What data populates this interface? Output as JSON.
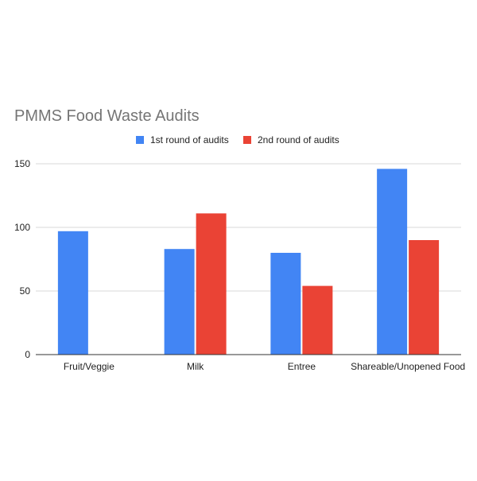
{
  "chart_data": {
    "type": "bar",
    "title": "PMMS Food Waste Audits",
    "xlabel": "",
    "ylabel": "",
    "categories": [
      "Fruit/Veggie",
      "Milk",
      "Entree",
      "Shareable/Unopened Food"
    ],
    "series": [
      {
        "name": "1st round of audits",
        "color": "#4285f4",
        "values": [
          97,
          83,
          80,
          146
        ]
      },
      {
        "name": "2nd round of audits",
        "color": "#ea4335",
        "values": [
          0,
          111,
          54,
          90
        ]
      }
    ],
    "ylim": [
      0,
      160
    ],
    "yticks": [
      0,
      50,
      100,
      150
    ],
    "grid": true,
    "legend": "top-center"
  }
}
